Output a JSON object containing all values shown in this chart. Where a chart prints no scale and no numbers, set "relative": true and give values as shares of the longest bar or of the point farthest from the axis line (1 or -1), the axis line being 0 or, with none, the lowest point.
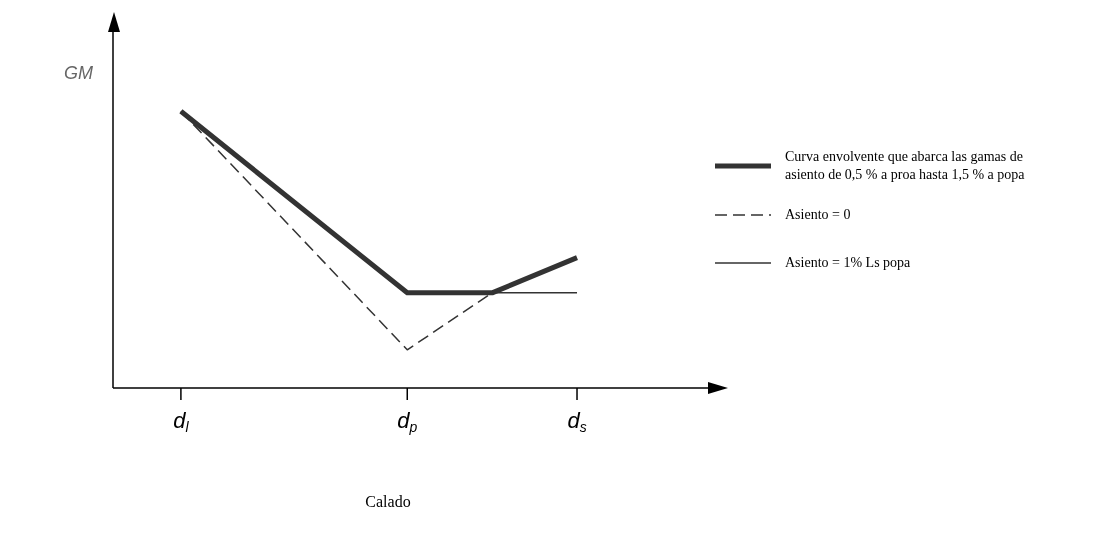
{
  "chart_data": {
    "type": "line",
    "relative": true,
    "xlabel": "Calado",
    "ylabel": "GM",
    "categories": [
      "d$_{l}$",
      null,
      null,
      null,
      null,
      null,
      null,
      null,
      "d$_{p}$",
      null,
      null,
      null,
      null,
      null,
      "d$_{s}$"
    ],
    "legend": "right",
    "grid": false,
    "marker": "none",
    "series": [
      {
        "name": "Curva envolvente que abarca las gamas de asiento de 0,5  % a proa hasta 1,5  % a popa",
        "color": "#333333",
        "line_style": "solid",
        "values": [
          1,
          null,
          null,
          null,
          null,
          null,
          null,
          null,
          0.344,
          null,
          null,
          0.344,
          null,
          null,
          0.471
        ]
      },
      {
        "name": "Asiento = 0",
        "color": "#333333",
        "line_style": "dashed",
        "values": [
          1,
          null,
          null,
          null,
          null,
          null,
          null,
          null,
          0.138,
          null,
          null,
          0.344,
          null,
          null,
          null
        ]
      },
      {
        "name": "Asiento = 1% Ls popa",
        "color": "#333333",
        "line_style": "solid",
        "values": [
          null,
          null,
          null,
          null,
          null,
          null,
          null,
          null,
          0.344,
          null,
          null,
          null,
          null,
          null,
          0.344
        ]
      }
    ]
  }
}
